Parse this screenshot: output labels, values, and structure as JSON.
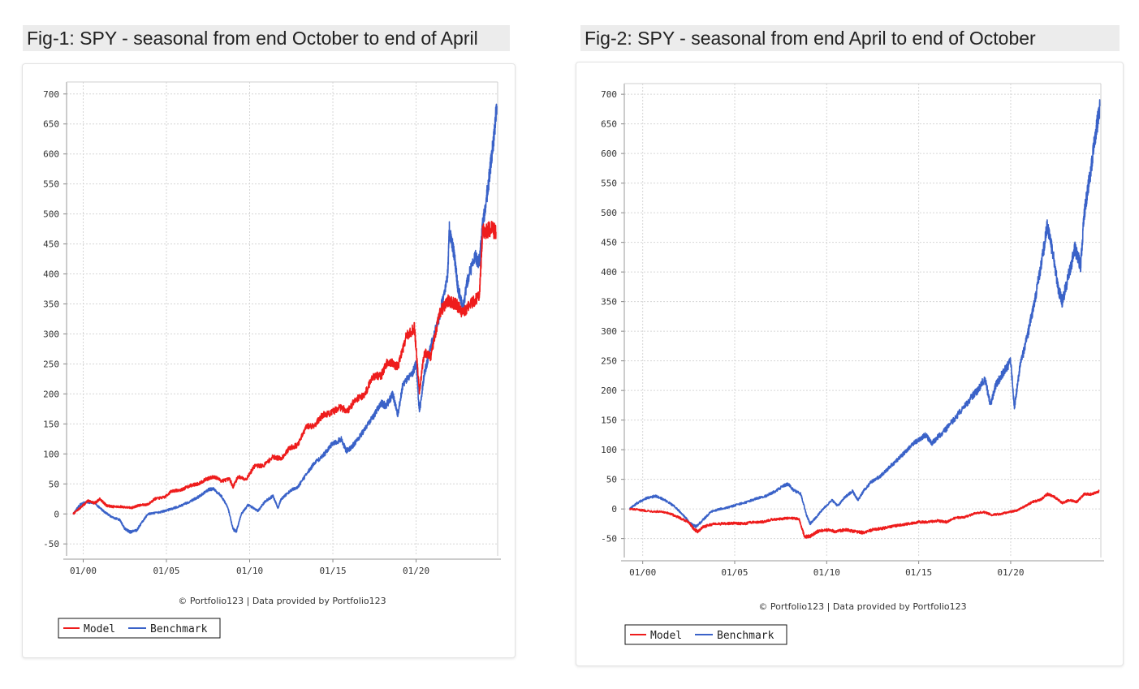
{
  "charts": [
    {
      "title": "Fig-1: SPY - seasonal from end October to end of April"
    },
    {
      "title": "Fig-2: SPY - seasonal from end April to end of October"
    }
  ],
  "chart_data": [
    {
      "type": "line",
      "title": "Fig-1: SPY - seasonal from end October to end of April",
      "credit": "© Portfolio123 | Data provided by Portfolio123",
      "ylim": [
        -70,
        720
      ],
      "xlim": [
        1999.0,
        2024.9
      ],
      "y_ticks": [
        700,
        650,
        600,
        550,
        500,
        450,
        400,
        350,
        300,
        250,
        200,
        150,
        100,
        50,
        0,
        -50
      ],
      "x_ticks": [
        {
          "label": "01/00",
          "value": 2000
        },
        {
          "label": "01/05",
          "value": 2005
        },
        {
          "label": "01/10",
          "value": 2010
        },
        {
          "label": "01/15",
          "value": 2015
        },
        {
          "label": "01/20",
          "value": 2020
        }
      ],
      "grid": true,
      "legend": {
        "position": "bottom-left",
        "items": [
          "Model",
          "Benchmark"
        ]
      },
      "series": [
        {
          "name": "Model",
          "color": "#ee1c1c",
          "points": [
            [
              1999.4,
              0
            ],
            [
              1999.9,
              12
            ],
            [
              2000.3,
              22
            ],
            [
              2000.7,
              18
            ],
            [
              2001.0,
              25
            ],
            [
              2001.4,
              14
            ],
            [
              2001.8,
              12
            ],
            [
              2002.3,
              12
            ],
            [
              2002.9,
              10
            ],
            [
              2003.3,
              14
            ],
            [
              2003.9,
              16
            ],
            [
              2004.3,
              25
            ],
            [
              2004.9,
              28
            ],
            [
              2005.3,
              38
            ],
            [
              2005.9,
              40
            ],
            [
              2006.4,
              47
            ],
            [
              2006.9,
              50
            ],
            [
              2007.4,
              58
            ],
            [
              2007.9,
              62
            ],
            [
              2008.3,
              55
            ],
            [
              2008.8,
              58
            ],
            [
              2009.0,
              45
            ],
            [
              2009.3,
              62
            ],
            [
              2009.8,
              58
            ],
            [
              2010.3,
              80
            ],
            [
              2010.8,
              80
            ],
            [
              2011.4,
              95
            ],
            [
              2011.9,
              92
            ],
            [
              2012.4,
              110
            ],
            [
              2012.9,
              115
            ],
            [
              2013.4,
              145
            ],
            [
              2013.9,
              148
            ],
            [
              2014.4,
              165
            ],
            [
              2014.9,
              168
            ],
            [
              2015.4,
              178
            ],
            [
              2015.9,
              172
            ],
            [
              2016.4,
              192
            ],
            [
              2016.9,
              198
            ],
            [
              2017.4,
              230
            ],
            [
              2017.9,
              230
            ],
            [
              2018.3,
              255
            ],
            [
              2018.9,
              245
            ],
            [
              2019.4,
              295
            ],
            [
              2019.9,
              310
            ],
            [
              2020.2,
              205
            ],
            [
              2020.5,
              270
            ],
            [
              2020.9,
              262
            ],
            [
              2021.4,
              335
            ],
            [
              2021.9,
              355
            ],
            [
              2022.4,
              350
            ],
            [
              2022.8,
              335
            ],
            [
              2023.3,
              350
            ],
            [
              2023.8,
              365
            ],
            [
              2024.0,
              470
            ],
            [
              2024.5,
              475
            ],
            [
              2024.8,
              470
            ]
          ]
        },
        {
          "name": "Benchmark",
          "color": "#3a62c8",
          "points": [
            [
              1999.4,
              0
            ],
            [
              1999.8,
              15
            ],
            [
              2000.2,
              20
            ],
            [
              2000.7,
              18
            ],
            [
              2001.2,
              5
            ],
            [
              2001.7,
              -5
            ],
            [
              2002.2,
              -10
            ],
            [
              2002.5,
              -25
            ],
            [
              2002.8,
              -30
            ],
            [
              2003.2,
              -28
            ],
            [
              2003.5,
              -15
            ],
            [
              2003.9,
              0
            ],
            [
              2004.5,
              2
            ],
            [
              2004.9,
              5
            ],
            [
              2005.5,
              10
            ],
            [
              2005.9,
              14
            ],
            [
              2006.5,
              22
            ],
            [
              2006.9,
              28
            ],
            [
              2007.5,
              40
            ],
            [
              2007.8,
              42
            ],
            [
              2008.3,
              30
            ],
            [
              2008.7,
              10
            ],
            [
              2009.0,
              -25
            ],
            [
              2009.2,
              -30
            ],
            [
              2009.5,
              0
            ],
            [
              2009.9,
              15
            ],
            [
              2010.5,
              5
            ],
            [
              2010.9,
              20
            ],
            [
              2011.4,
              30
            ],
            [
              2011.7,
              10
            ],
            [
              2011.9,
              25
            ],
            [
              2012.5,
              40
            ],
            [
              2012.9,
              45
            ],
            [
              2013.5,
              70
            ],
            [
              2013.9,
              85
            ],
            [
              2014.5,
              100
            ],
            [
              2014.9,
              115
            ],
            [
              2015.5,
              125
            ],
            [
              2015.8,
              105
            ],
            [
              2016.1,
              110
            ],
            [
              2016.5,
              125
            ],
            [
              2016.9,
              140
            ],
            [
              2017.5,
              165
            ],
            [
              2017.9,
              185
            ],
            [
              2018.2,
              180
            ],
            [
              2018.6,
              200
            ],
            [
              2018.9,
              165
            ],
            [
              2019.2,
              215
            ],
            [
              2019.8,
              235
            ],
            [
              2020.0,
              250
            ],
            [
              2020.2,
              170
            ],
            [
              2020.5,
              235
            ],
            [
              2020.9,
              280
            ],
            [
              2021.4,
              330
            ],
            [
              2021.9,
              400
            ],
            [
              2022.0,
              475
            ],
            [
              2022.3,
              430
            ],
            [
              2022.5,
              380
            ],
            [
              2022.8,
              340
            ],
            [
              2023.1,
              390
            ],
            [
              2023.5,
              430
            ],
            [
              2023.8,
              420
            ],
            [
              2024.0,
              480
            ],
            [
              2024.3,
              540
            ],
            [
              2024.6,
              610
            ],
            [
              2024.85,
              680
            ]
          ]
        }
      ]
    },
    {
      "type": "line",
      "title": "Fig-2: SPY - seasonal from end April to end of October",
      "credit": "© Portfolio123 | Data provided by Portfolio123",
      "ylim": [
        -82,
        718
      ],
      "xlim": [
        1999.0,
        2024.9
      ],
      "y_ticks": [
        700,
        650,
        600,
        550,
        500,
        450,
        400,
        350,
        300,
        250,
        200,
        150,
        100,
        50,
        0,
        -50
      ],
      "x_ticks": [
        {
          "label": "01/00",
          "value": 2000
        },
        {
          "label": "01/05",
          "value": 2005
        },
        {
          "label": "01/10",
          "value": 2010
        },
        {
          "label": "01/15",
          "value": 2015
        },
        {
          "label": "01/20",
          "value": 2020
        }
      ],
      "grid": true,
      "legend": {
        "position": "bottom-left",
        "items": [
          "Model",
          "Benchmark"
        ]
      },
      "series": [
        {
          "name": "Model",
          "color": "#ee1c1c",
          "points": [
            [
              1999.3,
              0
            ],
            [
              1999.9,
              -2
            ],
            [
              2000.5,
              -4
            ],
            [
              2001.0,
              -5
            ],
            [
              2001.5,
              -8
            ],
            [
              2002.0,
              -15
            ],
            [
              2002.5,
              -22
            ],
            [
              2002.8,
              -35
            ],
            [
              2003.0,
              -38
            ],
            [
              2003.3,
              -30
            ],
            [
              2003.9,
              -25
            ],
            [
              2004.5,
              -25
            ],
            [
              2005.0,
              -24
            ],
            [
              2005.5,
              -25
            ],
            [
              2006.0,
              -22
            ],
            [
              2006.5,
              -22
            ],
            [
              2007.0,
              -18
            ],
            [
              2007.5,
              -17
            ],
            [
              2008.0,
              -15
            ],
            [
              2008.5,
              -17
            ],
            [
              2008.8,
              -47
            ],
            [
              2009.1,
              -46
            ],
            [
              2009.5,
              -38
            ],
            [
              2010.0,
              -35
            ],
            [
              2010.5,
              -38
            ],
            [
              2011.0,
              -35
            ],
            [
              2011.5,
              -38
            ],
            [
              2012.0,
              -40
            ],
            [
              2012.5,
              -35
            ],
            [
              2013.0,
              -33
            ],
            [
              2013.5,
              -30
            ],
            [
              2014.0,
              -27
            ],
            [
              2014.5,
              -25
            ],
            [
              2015.0,
              -22
            ],
            [
              2015.5,
              -22
            ],
            [
              2016.0,
              -20
            ],
            [
              2016.5,
              -22
            ],
            [
              2017.0,
              -15
            ],
            [
              2017.5,
              -14
            ],
            [
              2018.0,
              -8
            ],
            [
              2018.5,
              -5
            ],
            [
              2019.0,
              -10
            ],
            [
              2019.5,
              -8
            ],
            [
              2020.0,
              -5
            ],
            [
              2020.3,
              -3
            ],
            [
              2020.8,
              5
            ],
            [
              2021.2,
              12
            ],
            [
              2021.6,
              15
            ],
            [
              2022.0,
              25
            ],
            [
              2022.4,
              20
            ],
            [
              2022.8,
              10
            ],
            [
              2023.2,
              15
            ],
            [
              2023.6,
              12
            ],
            [
              2024.0,
              25
            ],
            [
              2024.4,
              25
            ],
            [
              2024.8,
              30
            ]
          ]
        },
        {
          "name": "Benchmark",
          "color": "#3a62c8",
          "points": [
            [
              1999.3,
              0
            ],
            [
              1999.7,
              10
            ],
            [
              2000.2,
              18
            ],
            [
              2000.7,
              22
            ],
            [
              2001.2,
              15
            ],
            [
              2001.7,
              5
            ],
            [
              2002.2,
              -10
            ],
            [
              2002.6,
              -25
            ],
            [
              2002.9,
              -30
            ],
            [
              2003.3,
              -18
            ],
            [
              2003.7,
              -5
            ],
            [
              2004.2,
              0
            ],
            [
              2004.7,
              3
            ],
            [
              2005.2,
              8
            ],
            [
              2005.7,
              12
            ],
            [
              2006.2,
              18
            ],
            [
              2006.7,
              22
            ],
            [
              2007.2,
              30
            ],
            [
              2007.7,
              40
            ],
            [
              2007.9,
              42
            ],
            [
              2008.2,
              32
            ],
            [
              2008.6,
              25
            ],
            [
              2008.9,
              -10
            ],
            [
              2009.1,
              -25
            ],
            [
              2009.4,
              -15
            ],
            [
              2009.8,
              0
            ],
            [
              2010.3,
              15
            ],
            [
              2010.6,
              5
            ],
            [
              2011.0,
              20
            ],
            [
              2011.4,
              30
            ],
            [
              2011.7,
              15
            ],
            [
              2012.0,
              30
            ],
            [
              2012.4,
              45
            ],
            [
              2012.9,
              55
            ],
            [
              2013.4,
              70
            ],
            [
              2013.9,
              85
            ],
            [
              2014.4,
              100
            ],
            [
              2014.9,
              115
            ],
            [
              2015.4,
              125
            ],
            [
              2015.7,
              110
            ],
            [
              2016.0,
              120
            ],
            [
              2016.5,
              135
            ],
            [
              2016.9,
              150
            ],
            [
              2017.4,
              170
            ],
            [
              2017.9,
              190
            ],
            [
              2018.2,
              200
            ],
            [
              2018.6,
              220
            ],
            [
              2018.9,
              175
            ],
            [
              2019.2,
              210
            ],
            [
              2019.6,
              230
            ],
            [
              2020.0,
              250
            ],
            [
              2020.2,
              170
            ],
            [
              2020.5,
              240
            ],
            [
              2020.9,
              290
            ],
            [
              2021.3,
              350
            ],
            [
              2021.7,
              420
            ],
            [
              2022.0,
              480
            ],
            [
              2022.3,
              430
            ],
            [
              2022.6,
              370
            ],
            [
              2022.8,
              350
            ],
            [
              2023.2,
              400
            ],
            [
              2023.5,
              440
            ],
            [
              2023.8,
              410
            ],
            [
              2024.0,
              500
            ],
            [
              2024.3,
              560
            ],
            [
              2024.6,
              630
            ],
            [
              2024.85,
              680
            ]
          ]
        }
      ]
    }
  ]
}
